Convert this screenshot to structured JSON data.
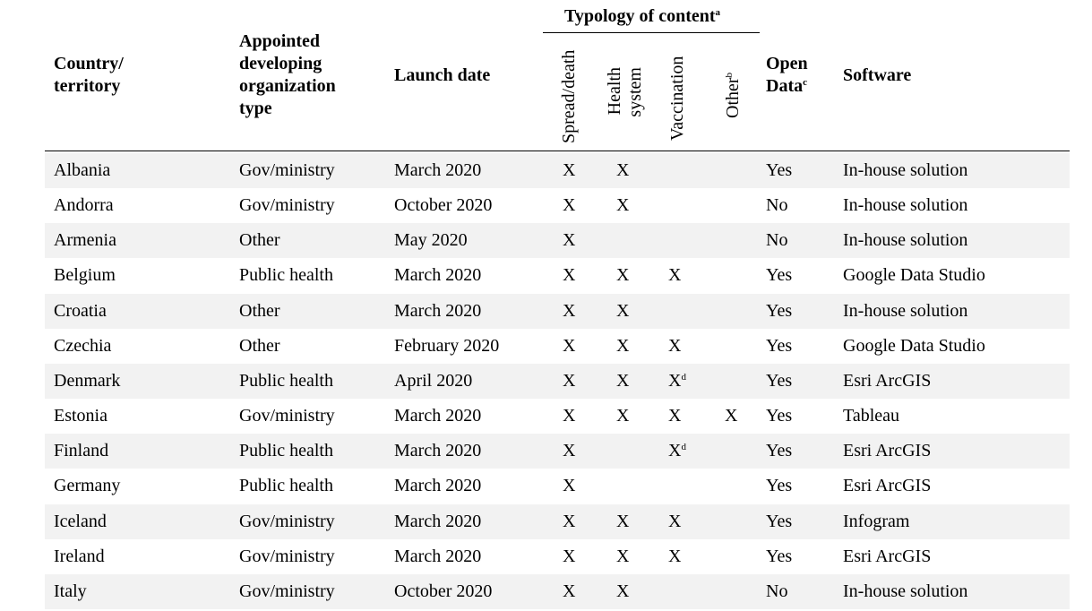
{
  "table": {
    "group_header": "Typology of content",
    "group_header_note": "a",
    "headers": {
      "country": [
        "Country/",
        "territory"
      ],
      "org": [
        "Appointed",
        "developing",
        "organization",
        "type"
      ],
      "launch": "Launch date",
      "spread": "Spread/death",
      "health": [
        "Health",
        "system"
      ],
      "vaccination": "Vaccination",
      "other": "Other",
      "other_note": "b",
      "open_data": [
        "Open",
        "Data"
      ],
      "open_data_note": "c",
      "software": "Software"
    },
    "rows": [
      {
        "country": "Albania",
        "org": "Gov/ministry",
        "launch": "March 2020",
        "spread": "X",
        "health": "X",
        "vaccination": "",
        "vacc_note": "",
        "other": "",
        "open_data": "Yes",
        "software": "In-house solution"
      },
      {
        "country": "Andorra",
        "org": "Gov/ministry",
        "launch": "October 2020",
        "spread": "X",
        "health": "X",
        "vaccination": "",
        "vacc_note": "",
        "other": "",
        "open_data": "No",
        "software": "In-house solution"
      },
      {
        "country": "Armenia",
        "org": "Other",
        "launch": "May 2020",
        "spread": "X",
        "health": "",
        "vaccination": "",
        "vacc_note": "",
        "other": "",
        "open_data": "No",
        "software": "In-house solution"
      },
      {
        "country": "Belgium",
        "org": "Public health",
        "launch": "March 2020",
        "spread": "X",
        "health": "X",
        "vaccination": "X",
        "vacc_note": "",
        "other": "",
        "open_data": "Yes",
        "software": "Google Data Studio"
      },
      {
        "country": "Croatia",
        "org": "Other",
        "launch": "March 2020",
        "spread": "X",
        "health": "X",
        "vaccination": "",
        "vacc_note": "",
        "other": "",
        "open_data": "Yes",
        "software": "In-house solution"
      },
      {
        "country": "Czechia",
        "org": "Other",
        "launch": "February 2020",
        "spread": "X",
        "health": "X",
        "vaccination": "X",
        "vacc_note": "",
        "other": "",
        "open_data": "Yes",
        "software": "Google Data Studio"
      },
      {
        "country": "Denmark",
        "org": "Public health",
        "launch": "April 2020",
        "spread": "X",
        "health": "X",
        "vaccination": "X",
        "vacc_note": "d",
        "other": "",
        "open_data": "Yes",
        "software": "Esri ArcGIS"
      },
      {
        "country": "Estonia",
        "org": "Gov/ministry",
        "launch": "March 2020",
        "spread": "X",
        "health": "X",
        "vaccination": "X",
        "vacc_note": "",
        "other": "X",
        "open_data": "Yes",
        "software": "Tableau"
      },
      {
        "country": "Finland",
        "org": "Public health",
        "launch": "March 2020",
        "spread": "X",
        "health": "",
        "vaccination": "X",
        "vacc_note": "d",
        "other": "",
        "open_data": "Yes",
        "software": "Esri ArcGIS"
      },
      {
        "country": "Germany",
        "org": "Public health",
        "launch": "March 2020",
        "spread": "X",
        "health": "",
        "vaccination": "",
        "vacc_note": "",
        "other": "",
        "open_data": "Yes",
        "software": "Esri ArcGIS"
      },
      {
        "country": "Iceland",
        "org": "Gov/ministry",
        "launch": "March 2020",
        "spread": "X",
        "health": "X",
        "vaccination": "X",
        "vacc_note": "",
        "other": "",
        "open_data": "Yes",
        "software": "Infogram"
      },
      {
        "country": "Ireland",
        "org": "Gov/ministry",
        "launch": "March 2020",
        "spread": "X",
        "health": "X",
        "vaccination": "X",
        "vacc_note": "",
        "other": "",
        "open_data": "Yes",
        "software": "Esri ArcGIS"
      },
      {
        "country": "Italy",
        "org": "Gov/ministry",
        "launch": "October 2020",
        "spread": "X",
        "health": "X",
        "vaccination": "",
        "vacc_note": "",
        "other": "",
        "open_data": "No",
        "software": "In-house solution"
      }
    ]
  }
}
